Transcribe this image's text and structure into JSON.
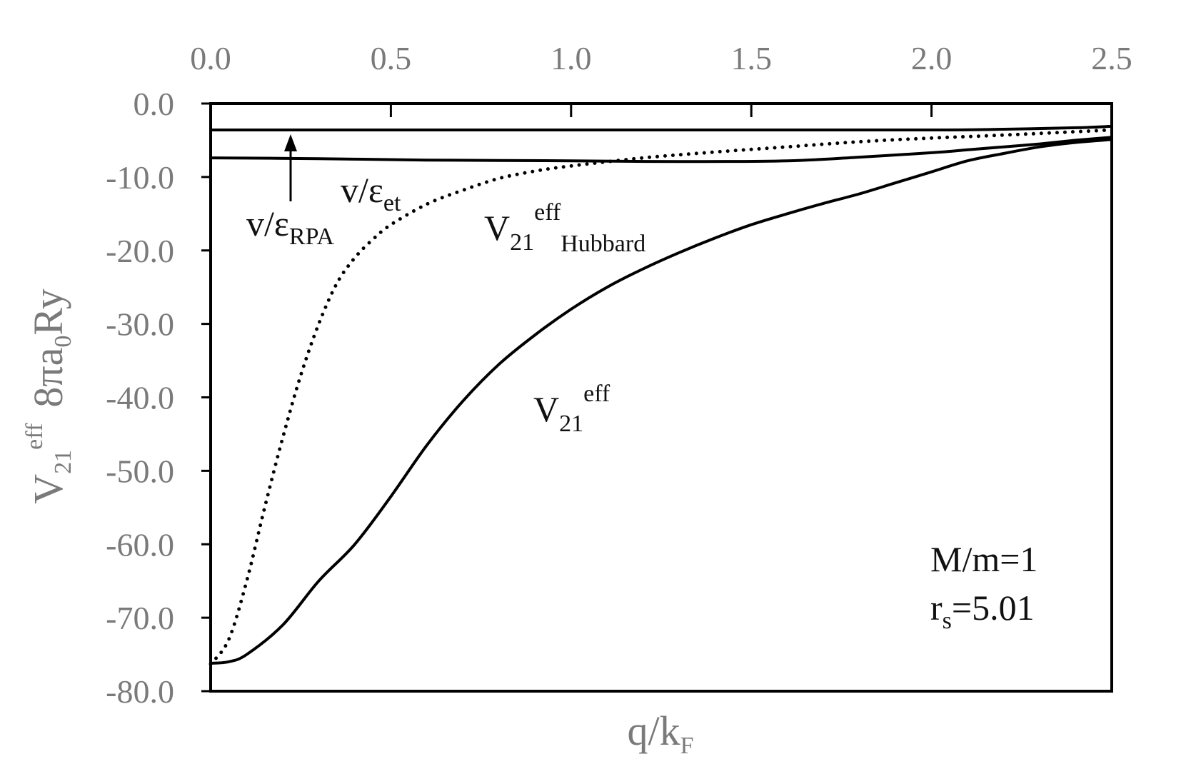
{
  "chart_data": {
    "type": "line",
    "xlabel": {
      "main": "q/k",
      "sub": "F"
    },
    "ylabel": {
      "v": "V",
      "v_sub": "21",
      "v_sup": "eff",
      "rest": "8πa",
      "rest_sub": "0",
      "rest_tail": "Ry"
    },
    "xlim": [
      0.0,
      2.5
    ],
    "ylim": [
      -80.0,
      0.0
    ],
    "x_ticks": [
      "0.0",
      "0.5",
      "1.0",
      "1.5",
      "2.0",
      "2.5"
    ],
    "y_ticks": [
      "0.0",
      "-10.0",
      "-20.0",
      "-30.0",
      "-40.0",
      "-50.0",
      "-60.0",
      "-70.0",
      "-80.0"
    ],
    "x_tick_values": [
      0.0,
      0.5,
      1.0,
      1.5,
      2.0,
      2.5
    ],
    "y_tick_values": [
      0,
      -10,
      -20,
      -30,
      -40,
      -50,
      -60,
      -70,
      -80
    ],
    "x_axis_position": "top",
    "grid": false,
    "series": [
      {
        "key": "rpa",
        "style": "solid",
        "x": [
          0.0,
          0.5,
          1.0,
          1.5,
          2.0,
          2.2,
          2.4,
          2.5
        ],
        "y": [
          -3.6,
          -3.6,
          -3.6,
          -3.6,
          -3.6,
          -3.5,
          -3.3,
          -3.1
        ]
      },
      {
        "key": "et",
        "style": "solid",
        "x": [
          0.0,
          0.3,
          0.6,
          1.0,
          1.3,
          1.6,
          1.8,
          2.0,
          2.1,
          2.2,
          2.3,
          2.4,
          2.5
        ],
        "y": [
          -7.4,
          -7.5,
          -7.7,
          -7.8,
          -7.9,
          -7.8,
          -7.3,
          -6.7,
          -6.3,
          -5.9,
          -5.5,
          -5.0,
          -4.6
        ]
      },
      {
        "key": "hubbard",
        "style": "dotted",
        "x": [
          0.0,
          0.05,
          0.1,
          0.15,
          0.2,
          0.25,
          0.3,
          0.35,
          0.4,
          0.45,
          0.5,
          0.6,
          0.7,
          0.8,
          0.9,
          1.0,
          1.2,
          1.4,
          1.6,
          1.8,
          2.0,
          2.2,
          2.5
        ],
        "y": [
          -76.3,
          -73.0,
          -65.0,
          -55.0,
          -45.5,
          -37.0,
          -30.0,
          -24.5,
          -21.0,
          -18.5,
          -16.5,
          -13.7,
          -11.8,
          -10.2,
          -9.2,
          -8.5,
          -7.4,
          -6.6,
          -5.9,
          -5.2,
          -4.7,
          -4.3,
          -3.6
        ]
      },
      {
        "key": "v21",
        "style": "solid",
        "x": [
          0.0,
          0.05,
          0.1,
          0.2,
          0.3,
          0.4,
          0.5,
          0.6,
          0.7,
          0.8,
          0.9,
          1.0,
          1.1,
          1.2,
          1.3,
          1.4,
          1.5,
          1.6,
          1.7,
          1.8,
          1.9,
          2.0,
          2.1,
          2.2,
          2.3,
          2.4,
          2.5
        ],
        "y": [
          -76.2,
          -76.0,
          -75.0,
          -71.0,
          -65.0,
          -60.0,
          -53.5,
          -46.5,
          -40.5,
          -35.5,
          -31.5,
          -28.0,
          -25.0,
          -22.5,
          -20.3,
          -18.3,
          -16.5,
          -15.0,
          -13.6,
          -12.3,
          -10.8,
          -9.3,
          -7.8,
          -6.8,
          -5.9,
          -5.3,
          -4.9
        ]
      }
    ],
    "annotations": [
      {
        "key": "rpa",
        "main": "v/ε",
        "sub": "RPA"
      },
      {
        "key": "et",
        "main": "v/ε",
        "sub": "et"
      },
      {
        "key": "hubbard",
        "main": "V",
        "sub": "21",
        "sup": "eff",
        "tail_sub": "Hubbard"
      },
      {
        "key": "v21",
        "main": "V",
        "sub": "21",
        "sup": "eff"
      }
    ],
    "params": [
      {
        "main": "M/m=1"
      },
      {
        "main": "r",
        "sub": "s",
        "tail": "=5.01"
      }
    ]
  }
}
